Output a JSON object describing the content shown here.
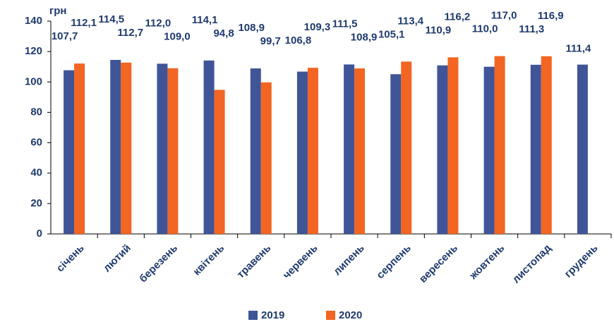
{
  "chart_data": {
    "type": "bar",
    "y_axis_label": "грн",
    "categories": [
      "січень",
      "лютий",
      "березень",
      "квітень",
      "травень",
      "червень",
      "липень",
      "серпень",
      "вересень",
      "жовтень",
      "листопад",
      "грудень"
    ],
    "series": [
      {
        "name": "2019",
        "color": "#3f5597",
        "values": [
          107.7,
          114.5,
          112.0,
          114.1,
          108.9,
          106.8,
          111.5,
          105.1,
          110.9,
          110.0,
          111.3,
          111.4
        ],
        "value_labels": [
          "107,7",
          "114,5",
          "112,0",
          "114,1",
          "108,9",
          "106,8",
          "111,5",
          "105,1",
          "110,9",
          "110,0",
          "111,3",
          "111,4"
        ]
      },
      {
        "name": "2020",
        "color": "#f26522",
        "values": [
          112.1,
          112.7,
          109.0,
          94.8,
          99.7,
          109.3,
          108.9,
          113.4,
          116.2,
          117.0,
          116.9,
          null
        ],
        "value_labels": [
          "112,1",
          "112,7",
          "109,0",
          "94,8",
          "99,7",
          "109,3",
          "108,9",
          "113,4",
          "116,2",
          "117,0",
          "116,9",
          null
        ]
      }
    ],
    "ylim": [
      0,
      140
    ],
    "yticks": [
      0,
      20,
      40,
      60,
      80,
      100,
      120,
      140
    ],
    "legend": "bottom"
  }
}
